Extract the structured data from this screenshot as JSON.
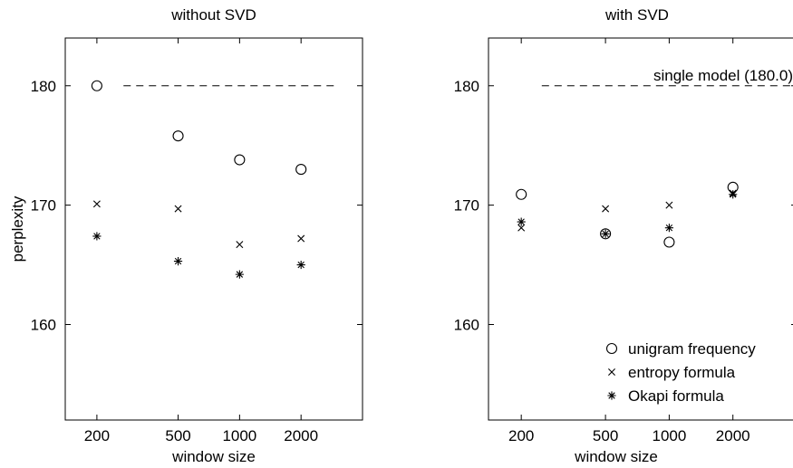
{
  "chart_data": [
    {
      "type": "scatter",
      "title": "without SVD",
      "xlabel": "window size",
      "ylabel": "perplexity",
      "x_scale": "log",
      "xlim": [
        140,
        4000
      ],
      "ylim": [
        152,
        184
      ],
      "xticks": [
        200,
        500,
        1000,
        2000
      ],
      "yticks": [
        160,
        170,
        180
      ],
      "reference_line": {
        "value": 180,
        "x_from": 270,
        "x_to": 3000,
        "label": ""
      },
      "series": [
        {
          "name": "unigram frequency",
          "marker": "circle",
          "x": [
            200,
            500,
            1000,
            2000
          ],
          "y": [
            180.0,
            175.8,
            173.8,
            173.0
          ]
        },
        {
          "name": "entropy formula",
          "marker": "x",
          "x": [
            200,
            500,
            1000,
            2000
          ],
          "y": [
            170.1,
            169.7,
            166.7,
            167.2
          ]
        },
        {
          "name": "Okapi formula",
          "marker": "asterisk",
          "x": [
            200,
            500,
            1000,
            2000
          ],
          "y": [
            167.4,
            165.3,
            164.2,
            165.0
          ]
        }
      ]
    },
    {
      "type": "scatter",
      "title": "with SVD",
      "xlabel": "window size",
      "ylabel": "",
      "x_scale": "log",
      "xlim": [
        140,
        4000
      ],
      "ylim": [
        152,
        184
      ],
      "xticks": [
        200,
        500,
        1000,
        2000
      ],
      "yticks": [
        160,
        170,
        180
      ],
      "reference_line": {
        "value": 180,
        "x_from": 250,
        "x_to": 4000,
        "label": "single model (180.0)"
      },
      "legend": "bottom-right",
      "series": [
        {
          "name": "unigram frequency",
          "marker": "circle",
          "x": [
            200,
            500,
            1000,
            2000
          ],
          "y": [
            170.9,
            167.6,
            166.9,
            171.5
          ]
        },
        {
          "name": "entropy formula",
          "marker": "x",
          "x": [
            200,
            500,
            1000,
            2000
          ],
          "y": [
            168.1,
            169.7,
            170.0,
            171.0
          ]
        },
        {
          "name": "Okapi formula",
          "marker": "asterisk",
          "x": [
            200,
            500,
            1000,
            2000
          ],
          "y": [
            168.6,
            167.6,
            168.1,
            170.9
          ]
        }
      ]
    }
  ]
}
